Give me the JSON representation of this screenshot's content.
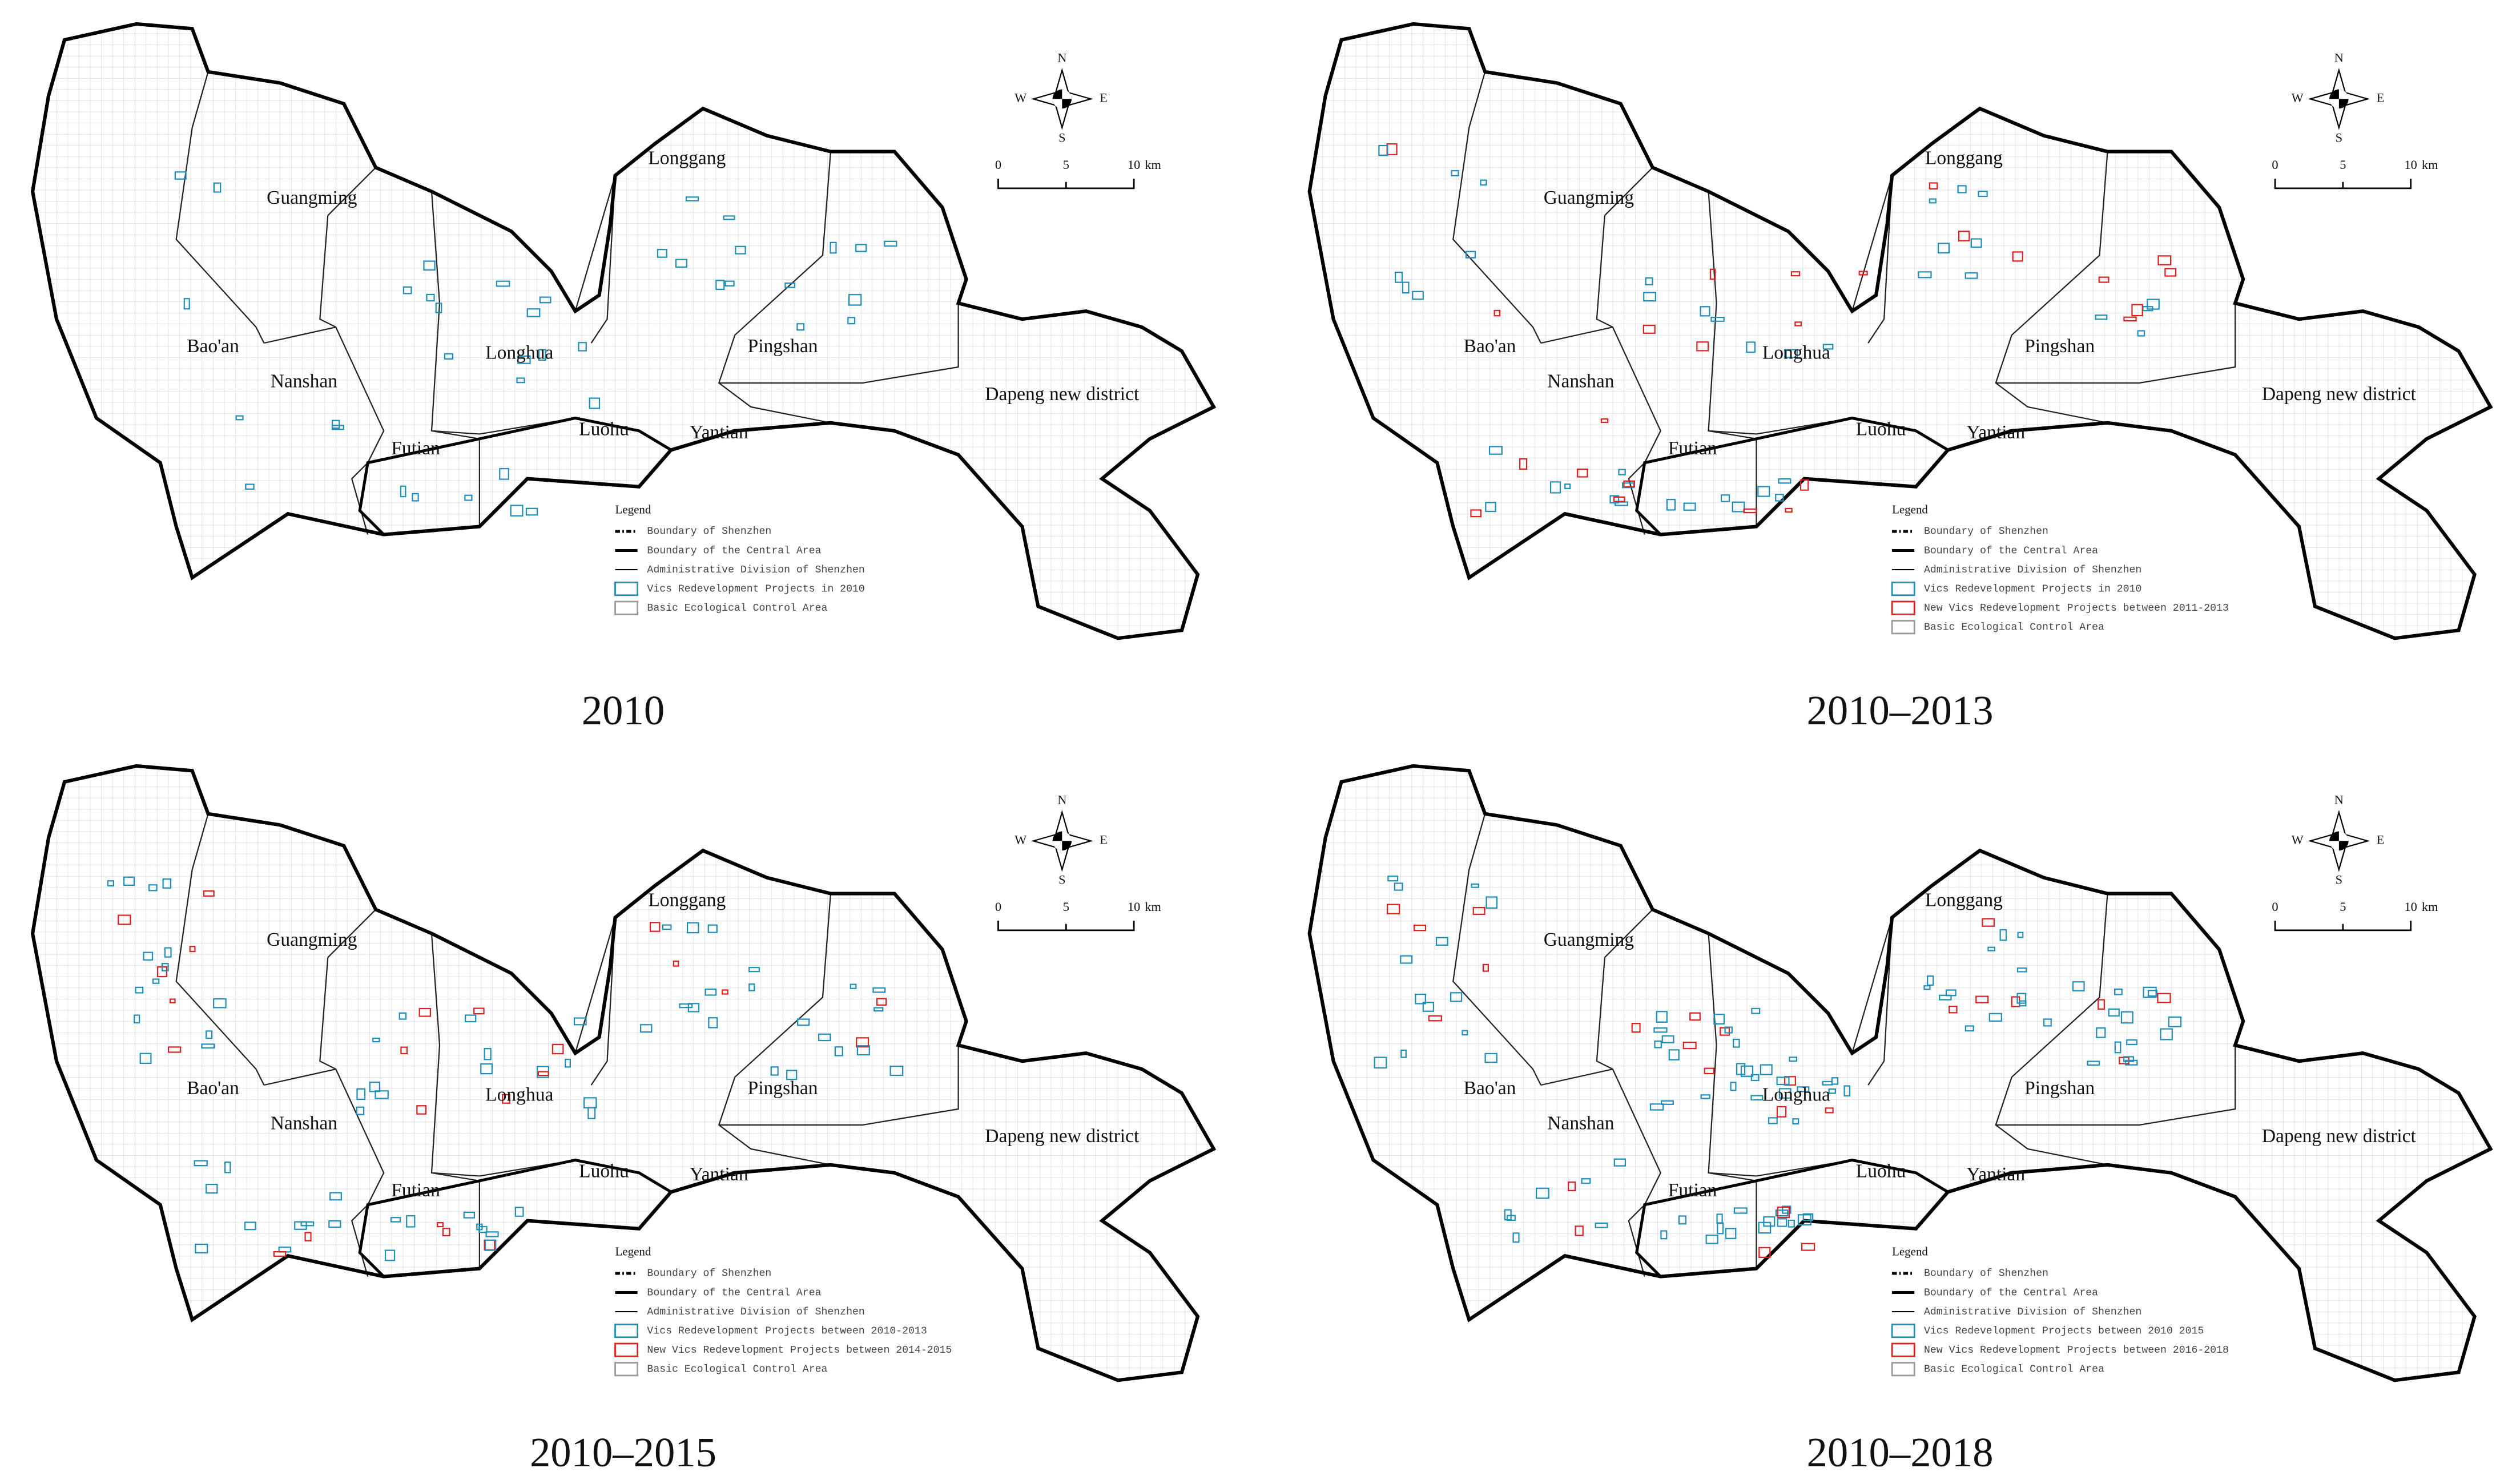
{
  "compass": {
    "n": "N",
    "s": "S",
    "e": "E",
    "w": "W"
  },
  "scale": {
    "labels": [
      "0",
      "5",
      "10",
      "km"
    ]
  },
  "panels": [
    {
      "caption": "2010",
      "districts": [
        "Longgang",
        "Guangming",
        "Bao'an",
        "Nanshan",
        "Longhua",
        "Pingshan",
        "Yantian",
        "Luohu",
        "Futian",
        "Dapeng new district"
      ],
      "legend": {
        "title": "Legend",
        "items": [
          {
            "label": "Boundary of Shenzhen",
            "style": "dash",
            "color": "#000000"
          },
          {
            "label": "Boundary of the Central Area",
            "style": "thick",
            "color": "#000000"
          },
          {
            "label": "Administrative Division of Shenzhen",
            "style": "thin",
            "color": "#000000"
          },
          {
            "label": "Vics Redevelopment Projects in 2010",
            "style": "box",
            "color": "#1f8fb8"
          },
          {
            "label": "Basic Ecological Control Area",
            "style": "box",
            "color": "#9a9a9a"
          }
        ]
      }
    },
    {
      "caption": "2010–2013",
      "districts": [
        "Longgang",
        "Guangming",
        "Bao'an",
        "Nanshan",
        "Longhua",
        "Pingshan",
        "Yantian",
        "Luohu",
        "Futian",
        "Dapeng new district"
      ],
      "legend": {
        "title": "Legend",
        "items": [
          {
            "label": "Boundary of Shenzhen",
            "style": "dash",
            "color": "#000000"
          },
          {
            "label": "Boundary of the Central Area",
            "style": "thick",
            "color": "#000000"
          },
          {
            "label": "Administrative Division of Shenzhen",
            "style": "thin",
            "color": "#000000"
          },
          {
            "label": "Vics Redevelopment Projects in 2010",
            "style": "box",
            "color": "#1f8fb8"
          },
          {
            "label": "New Vics Redevelopment Projects between 2011-2013",
            "style": "box",
            "color": "#e02020"
          },
          {
            "label": "Basic Ecological Control Area",
            "style": "box",
            "color": "#9a9a9a"
          }
        ]
      }
    },
    {
      "caption": "2010–2015",
      "districts": [
        "Longgang",
        "Guangming",
        "Bao'an",
        "Nanshan",
        "Longhua",
        "Pingshan",
        "Yantian",
        "Luohu",
        "Futian",
        "Dapeng new district"
      ],
      "legend": {
        "title": "Legend",
        "items": [
          {
            "label": "Boundary of Shenzhen",
            "style": "dash",
            "color": "#000000"
          },
          {
            "label": "Boundary of the Central Area",
            "style": "thick",
            "color": "#000000"
          },
          {
            "label": "Administrative Division of Shenzhen",
            "style": "thin",
            "color": "#000000"
          },
          {
            "label": "Vics Redevelopment Projects between 2010-2013",
            "style": "box",
            "color": "#1f8fb8"
          },
          {
            "label": "New Vics Redevelopment Projects between 2014-2015",
            "style": "box",
            "color": "#e02020"
          },
          {
            "label": "Basic Ecological Control Area",
            "style": "box",
            "color": "#9a9a9a"
          }
        ]
      }
    },
    {
      "caption": "2010–2018",
      "districts": [
        "Longgang",
        "Guangming",
        "Bao'an",
        "Nanshan",
        "Longhua",
        "Pingshan",
        "Yantian",
        "Luohu",
        "Futian",
        "Dapeng new district"
      ],
      "legend": {
        "title": "Legend",
        "items": [
          {
            "label": "Boundary of Shenzhen",
            "style": "dash",
            "color": "#000000"
          },
          {
            "label": "Boundary of the Central Area",
            "style": "thick",
            "color": "#000000"
          },
          {
            "label": "Administrative Division of Shenzhen",
            "style": "thin",
            "color": "#000000"
          },
          {
            "label": "Vics Redevelopment Projects between 2010 2015",
            "style": "box",
            "color": "#1f8fb8"
          },
          {
            "label": "New Vics Redevelopment Projects between 2016-2018",
            "style": "box",
            "color": "#e02020"
          },
          {
            "label": "Basic Ecological Control Area",
            "style": "box",
            "color": "#9a9a9a"
          }
        ]
      }
    }
  ]
}
